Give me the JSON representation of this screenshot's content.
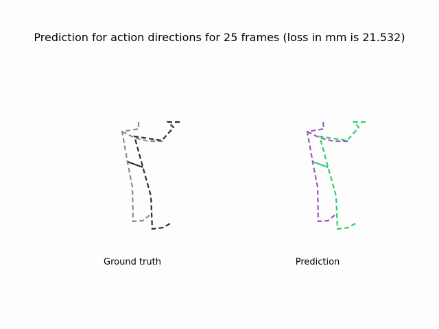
{
  "title": "Prediction for action directions for 25 frames (loss in mm is 21.532)",
  "panels": [
    {
      "caption": "Ground truth",
      "colors": {
        "left_side": "#8c8c8c",
        "right_side": "#2b2b2b"
      }
    },
    {
      "caption": "Prediction",
      "colors": {
        "left_side": "#9b59b6",
        "right_side": "#2ecc71"
      }
    }
  ]
}
